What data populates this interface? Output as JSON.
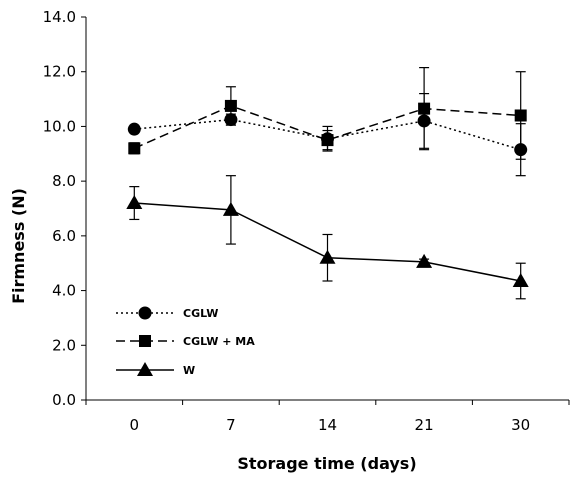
{
  "chart_data": {
    "type": "line",
    "xlabel": "Storage time (days)",
    "ylabel": "Firmness (N)",
    "categories": [
      "0",
      "7",
      "14",
      "21",
      "30"
    ],
    "ylim": [
      0,
      14
    ],
    "ytick_labels": [
      "0.0",
      "2.0",
      "4.0",
      "6.0",
      "8.0",
      "10.0",
      "12.0",
      "14.0"
    ],
    "grid": false,
    "legend_position": "lower-left",
    "series": [
      {
        "name": "CGLW",
        "marker": "circle",
        "line_style": "dotted",
        "values": [
          9.9,
          10.25,
          9.55,
          10.2,
          9.15
        ],
        "errors": [
          0,
          0.2,
          0.45,
          1.0,
          0.95
        ]
      },
      {
        "name": "CGLW + MA",
        "marker": "square",
        "line_style": "dashed",
        "values": [
          9.2,
          10.75,
          9.5,
          10.65,
          10.4
        ],
        "errors": [
          0.2,
          0.7,
          0.35,
          1.5,
          1.6
        ]
      },
      {
        "name": "W",
        "marker": "triangle",
        "line_style": "solid",
        "values": [
          7.2,
          6.95,
          5.2,
          5.05,
          4.35
        ],
        "errors": [
          0.6,
          1.25,
          0.85,
          0.1,
          0.65
        ]
      }
    ]
  }
}
